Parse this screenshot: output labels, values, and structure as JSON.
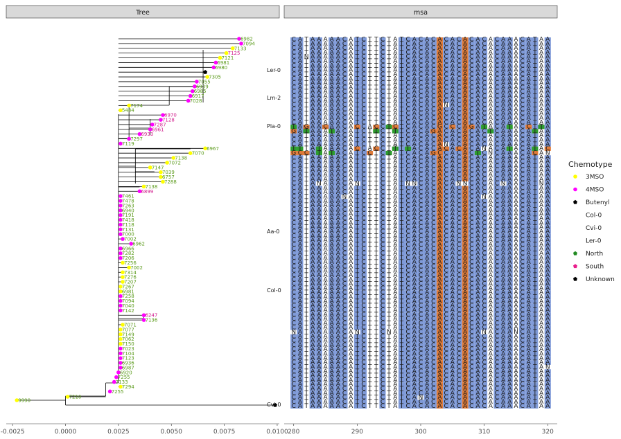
{
  "chart_data": [
    {
      "type": "tree",
      "panel_title": "Tree",
      "x_ticks": [
        "-0.0025",
        "0.0000",
        "0.0025",
        "0.0050",
        "0.0075",
        "0.0100"
      ],
      "x_tick_values": [
        -0.0025,
        0,
        0.0025,
        0.005,
        0.0075,
        0.01
      ],
      "xlim": [
        -0.0028,
        0.0101
      ],
      "clade_labels": [
        "Ler-0",
        "Lm-2",
        "Pla-0",
        "Aa-0",
        "Col-0",
        "Cvi-0"
      ],
      "tips": [
        {
          "label": "6982",
          "x": 0.0082,
          "chemotype": "4MSO",
          "region": "North"
        },
        {
          "label": "7094",
          "x": 0.0083,
          "chemotype": "4MSO",
          "region": "North"
        },
        {
          "label": "7133",
          "x": 0.0079,
          "chemotype": "3MSO",
          "region": "North"
        },
        {
          "label": "7125",
          "x": 0.0076,
          "chemotype": "3MSO",
          "region": "South"
        },
        {
          "label": "7121",
          "x": 0.0073,
          "chemotype": "3MSO",
          "region": "North"
        },
        {
          "label": "6981",
          "x": 0.0071,
          "chemotype": "4MSO",
          "region": "North"
        },
        {
          "label": "6980",
          "x": 0.007,
          "chemotype": "4MSO",
          "region": "North"
        },
        {
          "label": "Ler-0",
          "x": 0.0066,
          "chemotype": "Butenyl",
          "region": "North"
        },
        {
          "label": "7305",
          "x": 0.0067,
          "chemotype": "3MSO",
          "region": "North"
        },
        {
          "label": "7055",
          "x": 0.0062,
          "chemotype": "4MSO",
          "region": "North"
        },
        {
          "label": "6939",
          "x": 0.0061,
          "chemotype": "4MSO",
          "region": "North"
        },
        {
          "label": "6985",
          "x": 0.006,
          "chemotype": "4MSO",
          "region": "North"
        },
        {
          "label": "6917",
          "x": 0.0059,
          "chemotype": "4MSO",
          "region": "North"
        },
        {
          "label": "7028",
          "x": 0.0058,
          "chemotype": "4MSO",
          "region": "North"
        },
        {
          "label": "7174",
          "x": 0.003,
          "chemotype": "3MSO",
          "region": "North"
        },
        {
          "label": "5484",
          "x": 0.0026,
          "chemotype": "3MSO",
          "region": "North"
        },
        {
          "label": "6970",
          "x": 0.0046,
          "chemotype": "4MSO",
          "region": "South"
        },
        {
          "label": "7128",
          "x": 0.0045,
          "chemotype": "4MSO",
          "region": "South"
        },
        {
          "label": "7287",
          "x": 0.0041,
          "chemotype": "4MSO",
          "region": "South"
        },
        {
          "label": "6961",
          "x": 0.004,
          "chemotype": "4MSO",
          "region": "South"
        },
        {
          "label": "6933",
          "x": 0.0035,
          "chemotype": "4MSO",
          "region": "South"
        },
        {
          "label": "7297",
          "x": 0.003,
          "chemotype": "4MSO",
          "region": "North"
        },
        {
          "label": "7119",
          "x": 0.0026,
          "chemotype": "4MSO",
          "region": "North"
        },
        {
          "label": "6967",
          "x": 0.0066,
          "chemotype": "3MSO",
          "region": "North"
        },
        {
          "label": "7070",
          "x": 0.0059,
          "chemotype": "3MSO",
          "region": "North"
        },
        {
          "label": "7138",
          "x": 0.0051,
          "chemotype": "3MSO",
          "region": "North"
        },
        {
          "label": "7072",
          "x": 0.0048,
          "chemotype": "3MSO",
          "region": "North"
        },
        {
          "label": "7147",
          "x": 0.004,
          "chemotype": "3MSO",
          "region": "North"
        },
        {
          "label": "7039",
          "x": 0.0045,
          "chemotype": "3MSO",
          "region": "North"
        },
        {
          "label": "6757",
          "x": 0.0045,
          "chemotype": "3MSO",
          "region": "North"
        },
        {
          "label": "7288",
          "x": 0.0046,
          "chemotype": "3MSO",
          "region": "North"
        },
        {
          "label": "7138",
          "x": 0.0037,
          "chemotype": "3MSO",
          "region": "North"
        },
        {
          "label": "6899",
          "x": 0.0035,
          "chemotype": "4MSO",
          "region": "South"
        },
        {
          "label": "7461",
          "x": 0.0026,
          "chemotype": "4MSO",
          "region": "North"
        },
        {
          "label": "7478",
          "x": 0.0026,
          "chemotype": "4MSO",
          "region": "North"
        },
        {
          "label": "7263",
          "x": 0.0026,
          "chemotype": "4MSO",
          "region": "North"
        },
        {
          "label": "6940",
          "x": 0.0026,
          "chemotype": "4MSO",
          "region": "North"
        },
        {
          "label": "7191",
          "x": 0.0026,
          "chemotype": "4MSO",
          "region": "North"
        },
        {
          "label": "7418",
          "x": 0.0026,
          "chemotype": "4MSO",
          "region": "North"
        },
        {
          "label": "7118",
          "x": 0.0026,
          "chemotype": "4MSO",
          "region": "North"
        },
        {
          "label": "7131",
          "x": 0.0026,
          "chemotype": "4MSO",
          "region": "North"
        },
        {
          "label": "7000",
          "x": 0.0026,
          "chemotype": "4MSO",
          "region": "North"
        },
        {
          "label": "7002",
          "x": 0.0027,
          "chemotype": "4MSO",
          "region": "North"
        },
        {
          "label": "6962",
          "x": 0.0031,
          "chemotype": "4MSO",
          "region": "North"
        },
        {
          "label": "6966",
          "x": 0.0026,
          "chemotype": "4MSO",
          "region": "North"
        },
        {
          "label": "7282",
          "x": 0.0026,
          "chemotype": "4MSO",
          "region": "North"
        },
        {
          "label": "7206",
          "x": 0.0026,
          "chemotype": "4MSO",
          "region": "North"
        },
        {
          "label": "7256",
          "x": 0.0027,
          "chemotype": "3MSO",
          "region": "North"
        },
        {
          "label": "7002",
          "x": 0.003,
          "chemotype": "3MSO",
          "region": "North"
        },
        {
          "label": "7314",
          "x": 0.0027,
          "chemotype": "3MSO",
          "region": "North"
        },
        {
          "label": "7276",
          "x": 0.0027,
          "chemotype": "3MSO",
          "region": "North"
        },
        {
          "label": "7207",
          "x": 0.0027,
          "chemotype": "3MSO",
          "region": "North"
        },
        {
          "label": "7267",
          "x": 0.0026,
          "chemotype": "3MSO",
          "region": "North"
        },
        {
          "label": "6981",
          "x": 0.0026,
          "chemotype": "3MSO",
          "region": "North"
        },
        {
          "label": "7258",
          "x": 0.0026,
          "chemotype": "4MSO",
          "region": "North"
        },
        {
          "label": "7094",
          "x": 0.0026,
          "chemotype": "4MSO",
          "region": "North"
        },
        {
          "label": "7040",
          "x": 0.0026,
          "chemotype": "4MSO",
          "region": "North"
        },
        {
          "label": "7142",
          "x": 0.0026,
          "chemotype": "4MSO",
          "region": "North"
        },
        {
          "label": "6247",
          "x": 0.0037,
          "chemotype": "4MSO",
          "region": "South"
        },
        {
          "label": "7136",
          "x": 0.0037,
          "chemotype": "4MSO",
          "region": "North"
        },
        {
          "label": "7071",
          "x": 0.0027,
          "chemotype": "3MSO",
          "region": "North"
        },
        {
          "label": "7077",
          "x": 0.0026,
          "chemotype": "3MSO",
          "region": "North"
        },
        {
          "label": "7149",
          "x": 0.0026,
          "chemotype": "3MSO",
          "region": "North"
        },
        {
          "label": "7062",
          "x": 0.0026,
          "chemotype": "3MSO",
          "region": "North"
        },
        {
          "label": "7150",
          "x": 0.0026,
          "chemotype": "3MSO",
          "region": "North"
        },
        {
          "label": "7023",
          "x": 0.0026,
          "chemotype": "4MSO",
          "region": "North"
        },
        {
          "label": "7104",
          "x": 0.0026,
          "chemotype": "4MSO",
          "region": "North"
        },
        {
          "label": "7123",
          "x": 0.0026,
          "chemotype": "4MSO",
          "region": "North"
        },
        {
          "label": "6936",
          "x": 0.0026,
          "chemotype": "4MSO",
          "region": "North"
        },
        {
          "label": "6987",
          "x": 0.0026,
          "chemotype": "4MSO",
          "region": "North"
        },
        {
          "label": "6920",
          "x": 0.0025,
          "chemotype": "4MSO",
          "region": "North"
        },
        {
          "label": "7255",
          "x": 0.0024,
          "chemotype": "4MSO",
          "region": "North"
        },
        {
          "label": "7133",
          "x": 0.0023,
          "chemotype": "4MSO",
          "region": "North"
        },
        {
          "label": "7294",
          "x": 0.0026,
          "chemotype": "3MSO",
          "region": "North"
        },
        {
          "label": "7255",
          "x": 0.0021,
          "chemotype": "4MSO",
          "region": "North"
        },
        {
          "label": "7210",
          "x": 0.0001,
          "chemotype": "3MSO",
          "region": "North"
        },
        {
          "label": "9990",
          "x": -0.0023,
          "chemotype": "3MSO",
          "region": "North"
        },
        {
          "label": "Cvi-0",
          "x": 0.0099,
          "chemotype": "Butenyl",
          "region": "Unknown"
        }
      ]
    },
    {
      "type": "heatmap",
      "panel_title": "msa",
      "x_ticks": [
        "280",
        "290",
        "300",
        "310",
        "320"
      ],
      "x_tick_values": [
        280,
        290,
        300,
        310,
        320
      ],
      "xlim": [
        278.5,
        321.5
      ],
      "columns_start": 280,
      "reference": "CATAAAAACATCTTCTATCACACACACACACACAAACATAAACTA",
      "mismatch_rows": [
        {
          "row": 4,
          "changes": [
            [
              282,
              "N"
            ]
          ]
        },
        {
          "row": 15,
          "changes": [
            [
              304,
              "N"
            ]
          ]
        },
        {
          "row": 20,
          "changes": [
            [
              280,
              "T"
            ],
            [
              282,
              "G"
            ],
            [
              285,
              "C"
            ],
            [
              290,
              "C"
            ],
            [
              292,
              "A"
            ],
            [
              293,
              "C"
            ],
            [
              295,
              "T"
            ],
            [
              296,
              "C"
            ],
            [
              303,
              "G"
            ],
            [
              305,
              "C"
            ],
            [
              308,
              "G"
            ],
            [
              310,
              "T"
            ],
            [
              314,
              "T"
            ],
            [
              317,
              "C"
            ],
            [
              319,
              "T"
            ]
          ]
        },
        {
          "row": 21,
          "changes": [
            [
              280,
              "G"
            ],
            [
              282,
              "T"
            ],
            [
              286,
              "T"
            ],
            [
              293,
              "T"
            ],
            [
              296,
              "T"
            ],
            [
              302,
              "G"
            ],
            [
              311,
              "T"
            ],
            [
              318,
              "T"
            ]
          ]
        },
        {
          "row": 24,
          "changes": [
            [
              304,
              "N"
            ]
          ]
        },
        {
          "row": 25,
          "changes": [
            [
              280,
              "T"
            ],
            [
              281,
              "T"
            ],
            [
              284,
              "T"
            ],
            [
              290,
              "C"
            ],
            [
              292,
              "A"
            ],
            [
              293,
              "C"
            ],
            [
              296,
              "T"
            ],
            [
              298,
              "T"
            ],
            [
              304,
              "C"
            ],
            [
              306,
              "C"
            ],
            [
              310,
              "N"
            ],
            [
              314,
              "T"
            ],
            [
              318,
              "T"
            ],
            [
              320,
              "C"
            ]
          ]
        },
        {
          "row": 26,
          "changes": [
            [
              280,
              "G"
            ],
            [
              281,
              "C"
            ],
            [
              282,
              "C"
            ],
            [
              284,
              "T"
            ],
            [
              286,
              "T"
            ],
            [
              292,
              "C"
            ],
            [
              295,
              "T"
            ],
            [
              302,
              "G"
            ],
            [
              303,
              "C"
            ],
            [
              309,
              "T"
            ],
            [
              311,
              "N"
            ],
            [
              318,
              "C"
            ],
            [
              320,
              "N"
            ]
          ]
        },
        {
          "row": 33,
          "changes": [
            [
              284,
              "N"
            ],
            [
              290,
              "N"
            ],
            [
              298,
              "N"
            ],
            [
              299,
              "N"
            ],
            [
              306,
              "N"
            ],
            [
              307,
              "N"
            ],
            [
              313,
              "N"
            ],
            [
              319,
              "N"
            ]
          ]
        },
        {
          "row": 36,
          "changes": [
            [
              288,
              "N"
            ],
            [
              310,
              "N"
            ]
          ]
        },
        {
          "row": 67,
          "changes": [
            [
              280,
              "N"
            ],
            [
              290,
              "N"
            ],
            [
              295,
              "N"
            ],
            [
              310,
              "N"
            ],
            [
              315,
              "N"
            ]
          ]
        },
        {
          "row": 75,
          "changes": [
            [
              320,
              "N"
            ]
          ]
        },
        {
          "row": 82,
          "changes": [
            [
              300,
              "N"
            ]
          ]
        }
      ],
      "highlight_columns": [
        303,
        307
      ],
      "total_rows": 85
    }
  ],
  "legend": {
    "title": "Chemotype",
    "entries": [
      {
        "label": "3MSO",
        "color": "#ffff00",
        "marker": "circle"
      },
      {
        "label": "4MSO",
        "color": "#ff00ff",
        "marker": "circle"
      },
      {
        "label": "Butenyl",
        "color": "#000000",
        "marker": "pentagon"
      },
      {
        "label": "Col-0",
        "color": "",
        "marker": "none"
      },
      {
        "label": "Cvi-0",
        "color": "",
        "marker": "none"
      },
      {
        "label": "Ler-0",
        "color": "",
        "marker": "none"
      },
      {
        "label": "North",
        "color": "#228b22",
        "marker": "pentagon"
      },
      {
        "label": "South",
        "color": "#e91e8c",
        "marker": "pentagon"
      },
      {
        "label": "Unknown",
        "color": "#000000",
        "marker": "pentagon"
      }
    ]
  },
  "colors": {
    "strip_fill": "#d9d9d9",
    "msa_blue": "#7f9ad8",
    "msa_orange": "#e07b39",
    "msa_green": "#2e9c2e",
    "label_green": "#5a9a1a",
    "label_magenta": "#d0188a",
    "branch": "#000000"
  }
}
